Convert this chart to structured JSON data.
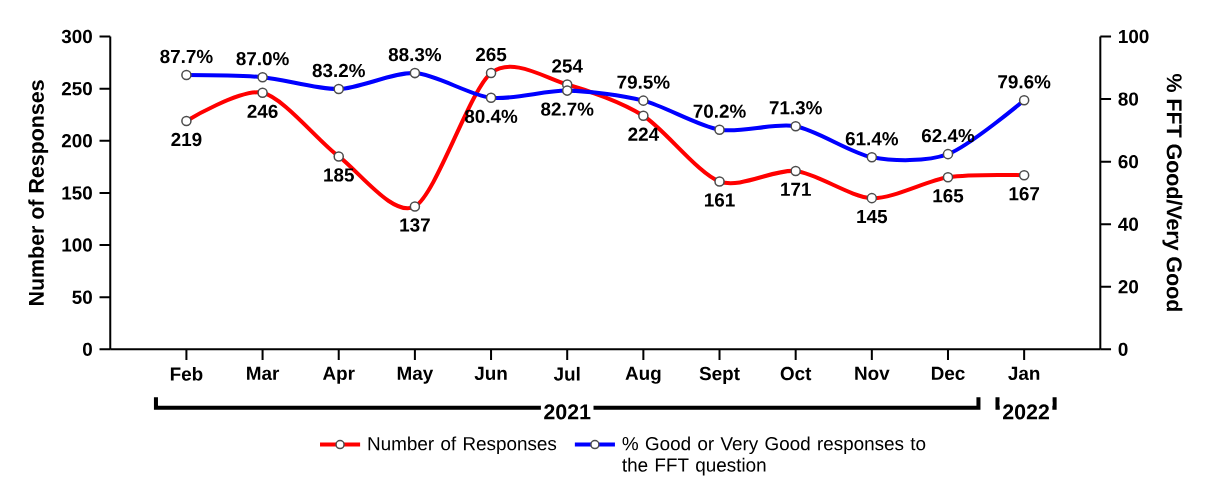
{
  "chart_data": {
    "type": "line",
    "categories": [
      "Feb",
      "Mar",
      "Apr",
      "May",
      "Jun",
      "Jul",
      "Aug",
      "Sept",
      "Oct",
      "Nov",
      "Dec",
      "Jan"
    ],
    "ylabel": "Number of Responses",
    "y2label": "% FFT Good/Very Good",
    "ylim": [
      0,
      300
    ],
    "yticks": [
      0,
      50,
      100,
      150,
      200,
      250,
      300
    ],
    "y2lim": [
      0,
      100
    ],
    "y2ticks": [
      0,
      20,
      40,
      60,
      80,
      100
    ],
    "series": [
      {
        "name": "Number of Responses",
        "color": "#ff0000",
        "values": [
          219,
          246,
          185,
          137,
          265,
          254,
          224,
          161,
          171,
          145,
          165,
          167
        ],
        "value_labels": [
          "219",
          "246",
          "185",
          "137",
          "265",
          "254",
          "224",
          "161",
          "171",
          "145",
          "165",
          "167"
        ]
      },
      {
        "name": "% Good or Very Good responses to the FFT question",
        "color": "#0000ff",
        "axis": "y2",
        "values": [
          87.7,
          87.0,
          83.2,
          88.3,
          80.4,
          82.7,
          79.5,
          70.2,
          71.3,
          61.4,
          62.4,
          79.6
        ],
        "value_labels": [
          "87.7%",
          "87.0%",
          "83.2%",
          "88.3%",
          "80.4%",
          "82.7%",
          "79.5%",
          "70.2%",
          "71.3%",
          "61.4%",
          "62.4%",
          "79.6%"
        ]
      }
    ],
    "annotations": [
      "2021",
      "2022"
    ],
    "marker": "circle",
    "legend": "bottom",
    "grid": false
  }
}
